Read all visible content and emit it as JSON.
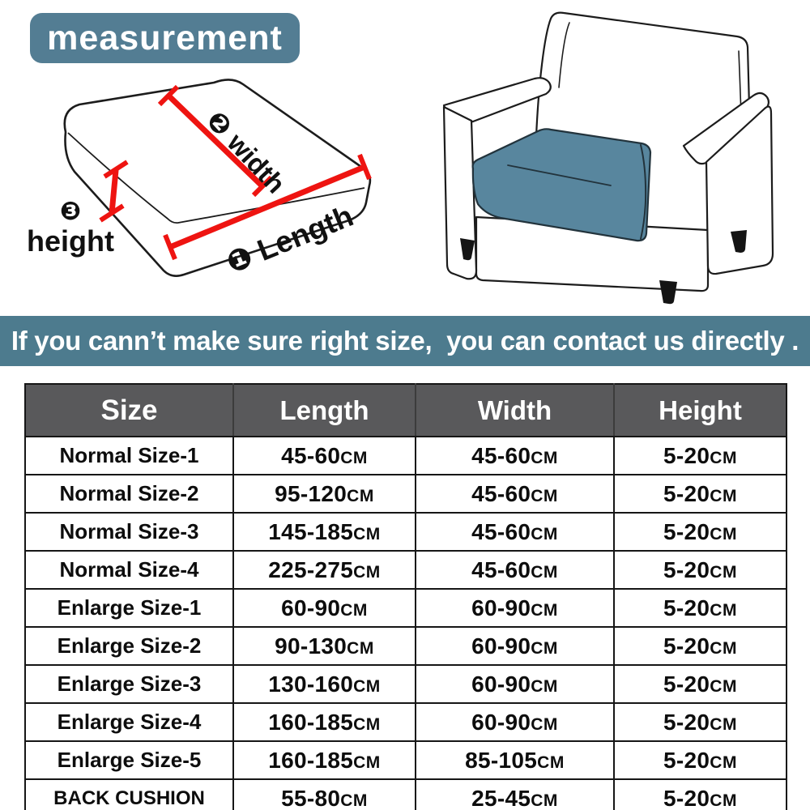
{
  "badge": {
    "label": "measurement"
  },
  "diagram": {
    "width_marker": "❷",
    "width_label": "width",
    "length_marker": "❶",
    "length_label": "Length",
    "height_marker": "❸",
    "height_label": "height"
  },
  "banner": {
    "text": "If you cann’t make sure right size,  you can contact us directly ."
  },
  "table": {
    "headers": [
      "Size",
      "Length",
      "Width",
      "Height"
    ],
    "unit": "CM",
    "rows": [
      {
        "size": "Normal Size-1",
        "length": "45-60",
        "width": "45-60",
        "height": "5-20"
      },
      {
        "size": "Normal Size-2",
        "length": "95-120",
        "width": "45-60",
        "height": "5-20"
      },
      {
        "size": "Normal Size-3",
        "length": "145-185",
        "width": "45-60",
        "height": "5-20"
      },
      {
        "size": "Normal Size-4",
        "length": "225-275",
        "width": "45-60",
        "height": "5-20"
      },
      {
        "size": "Enlarge Size-1",
        "length": "60-90",
        "width": "60-90",
        "height": "5-20"
      },
      {
        "size": "Enlarge Size-2",
        "length": "90-130",
        "width": "60-90",
        "height": "5-20"
      },
      {
        "size": "Enlarge Size-3",
        "length": "130-160",
        "width": "60-90",
        "height": "5-20"
      },
      {
        "size": "Enlarge Size-4",
        "length": "160-185",
        "width": "60-90",
        "height": "5-20"
      },
      {
        "size": "Enlarge Size-5",
        "length": "160-185",
        "width": "85-105",
        "height": "5-20"
      },
      {
        "size": "BACK CUSHION",
        "length": "55-80",
        "width": "25-45",
        "height": "5-20"
      }
    ]
  },
  "colors": {
    "badge_bg": "#537d93",
    "banner_bg": "#4d7b8e",
    "header_bg": "#59595b",
    "header_text": "#ffffff",
    "seat_cushion": "#58869e",
    "measure_red": "#ee1411",
    "line_black": "#1c1c1c",
    "table_border": "#161616"
  }
}
